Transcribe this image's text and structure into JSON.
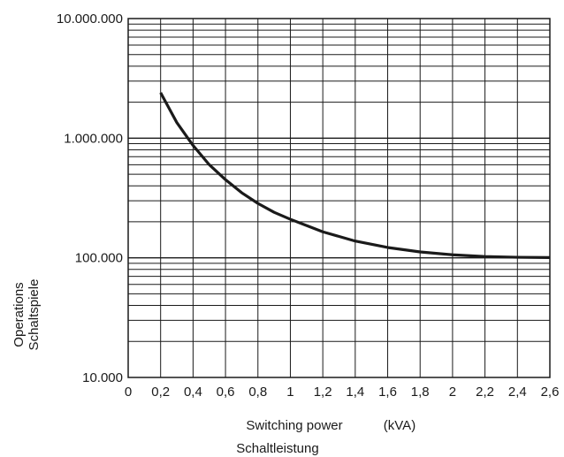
{
  "chart_data": {
    "type": "line",
    "x_scale": "linear",
    "y_scale": "log",
    "xlim": [
      0,
      2.6
    ],
    "ylim": [
      10000,
      10000000
    ],
    "grid": true,
    "x_ticks": [
      "0",
      "0,2",
      "0,4",
      "0,6",
      "0,8",
      "1",
      "1,2",
      "1,4",
      "1,6",
      "1,8",
      "2",
      "2,2",
      "2,4",
      "2,6"
    ],
    "y_ticks": [
      "10.000",
      "100.000",
      "1.000.000",
      "10.000.000"
    ],
    "xlabel": "Switching power",
    "xlabel_unit": "(kVA)",
    "xlabel_sub": "Schaltleistung",
    "ylabel": "Operations",
    "ylabel_sub": "Schaltspiele",
    "series": [
      {
        "x": [
          0.2,
          0.3,
          0.4,
          0.5,
          0.6,
          0.7,
          0.8,
          0.9,
          1.0,
          1.2,
          1.4,
          1.6,
          1.8,
          2.0,
          2.2,
          2.4,
          2.6
        ],
        "y": [
          2400000,
          1350000,
          870000,
          600000,
          450000,
          350000,
          285000,
          240000,
          210000,
          165000,
          138000,
          122000,
          112000,
          106000,
          102500,
          101000,
          100500
        ]
      }
    ]
  }
}
